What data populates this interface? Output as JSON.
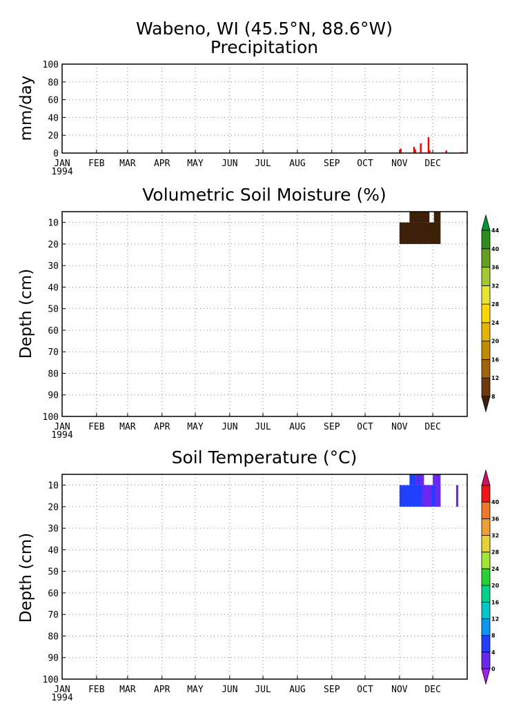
{
  "figure_title": "Wabeno, WI  (45.5°N, 88.6°W)",
  "months": [
    "JAN",
    "FEB",
    "MAR",
    "APR",
    "MAY",
    "JUN",
    "JUL",
    "AUG",
    "SEP",
    "OCT",
    "NOV",
    "DEC"
  ],
  "year_label": "1994",
  "chart_data": [
    {
      "id": "precipitation",
      "type": "bar",
      "title": "Precipitation",
      "ylabel": "mm/day",
      "ylim": [
        0,
        100
      ],
      "yticks": [
        0,
        20,
        40,
        60,
        80,
        100
      ],
      "x_unit": "day of year 1994",
      "bar_color": "#ff0000",
      "grid": true,
      "x": [
        305,
        317,
        318,
        323,
        330,
        331,
        346,
        359,
        361
      ],
      "values": [
        5,
        7,
        4,
        11,
        18,
        3,
        3,
        1,
        1
      ]
    },
    {
      "id": "soil_moisture",
      "type": "heatmap",
      "title": "Volumetric Soil Moisture (%)",
      "ylabel": "Depth (cm)",
      "ylim": [
        100,
        5
      ],
      "yticks": [
        10,
        20,
        30,
        40,
        50,
        60,
        70,
        80,
        90,
        100
      ],
      "grid": true,
      "colorbar_labels": [
        "8",
        "12",
        "16",
        "20",
        "24",
        "28",
        "32",
        "36",
        "40",
        "44"
      ],
      "colorbar_colors": [
        "#3d2008",
        "#6e3a0c",
        "#a0650a",
        "#c48b00",
        "#e6b400",
        "#ffd800",
        "#e6e632",
        "#a6c832",
        "#64a01e",
        "#2d8c1e",
        "#009632"
      ],
      "cells": [
        {
          "x0": 304,
          "x1": 341,
          "d0": 10,
          "d1": 20,
          "value": 6
        },
        {
          "x0": 313,
          "x1": 331,
          "d0": 5,
          "d1": 10,
          "value": 6
        },
        {
          "x0": 335,
          "x1": 341,
          "d0": 5,
          "d1": 10,
          "value": 6
        }
      ]
    },
    {
      "id": "soil_temperature",
      "type": "heatmap",
      "title": "Soil Temperature (°C)",
      "ylabel": "Depth (cm)",
      "ylim": [
        100,
        5
      ],
      "yticks": [
        10,
        20,
        30,
        40,
        50,
        60,
        70,
        80,
        90,
        100
      ],
      "grid": true,
      "colorbar_labels": [
        "0",
        "4",
        "8",
        "12",
        "16",
        "20",
        "24",
        "28",
        "32",
        "36",
        "40"
      ],
      "colorbar_colors": [
        "#a020f0",
        "#6a28f0",
        "#2040ff",
        "#0a96f0",
        "#00c8c8",
        "#00d28c",
        "#28d232",
        "#a0e632",
        "#e6d232",
        "#f0a032",
        "#f07828",
        "#f01414",
        "#c81464"
      ],
      "cells": [
        {
          "x0": 304,
          "x1": 341,
          "d0": 10,
          "d1": 20,
          "value": 4
        },
        {
          "x0": 313,
          "x1": 326,
          "d0": 5,
          "d1": 10,
          "value": 4
        },
        {
          "x0": 318,
          "x1": 320,
          "d0": 5,
          "d1": 10,
          "value": 0
        },
        {
          "x0": 324,
          "x1": 333,
          "d0": 10,
          "d1": 20,
          "value": 0
        },
        {
          "x0": 322,
          "x1": 326,
          "d0": 5,
          "d1": 10,
          "value": 0
        },
        {
          "x0": 334,
          "x1": 341,
          "d0": 5,
          "d1": 10,
          "value": 0
        },
        {
          "x0": 336,
          "x1": 341,
          "d0": 10,
          "d1": 20,
          "value": 0
        },
        {
          "x0": 355,
          "x1": 357,
          "d0": 10,
          "d1": 20,
          "value": 0
        }
      ]
    }
  ]
}
